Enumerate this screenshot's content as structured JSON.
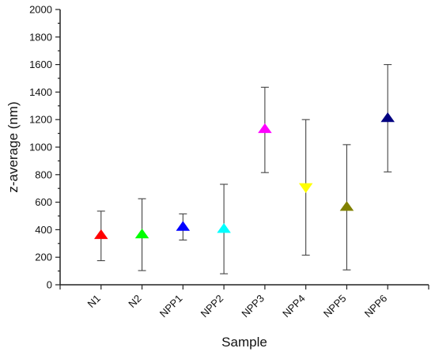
{
  "chart_data": {
    "type": "scatter",
    "xlabel": "Sample",
    "ylabel": "z-average (nm)",
    "ylim": [
      0,
      2000
    ],
    "yticks": [
      0,
      200,
      400,
      600,
      800,
      1000,
      1200,
      1400,
      1600,
      1800,
      2000
    ],
    "categories": [
      "N1",
      "N2",
      "NPP1",
      "NPP2",
      "NPP3",
      "NPP4",
      "NPP5",
      "NPP6"
    ],
    "points": [
      {
        "label": "N1",
        "value": 360,
        "err_low": 175,
        "err_high": 535,
        "color": "#ff0000",
        "marker": "triangle-up"
      },
      {
        "label": "N2",
        "value": 365,
        "err_low": 103,
        "err_high": 625,
        "color": "#00ff00",
        "marker": "triangle-up"
      },
      {
        "label": "NPP1",
        "value": 420,
        "err_low": 325,
        "err_high": 515,
        "color": "#0000ff",
        "marker": "triangle-up"
      },
      {
        "label": "NPP2",
        "value": 405,
        "err_low": 80,
        "err_high": 730,
        "color": "#00ffff",
        "marker": "triangle-up"
      },
      {
        "label": "NPP3",
        "value": 1130,
        "err_low": 815,
        "err_high": 1435,
        "color": "#ff00ff",
        "marker": "triangle-up"
      },
      {
        "label": "NPP4",
        "value": 710,
        "err_low": 215,
        "err_high": 1200,
        "color": "#ffff00",
        "marker": "triangle-down"
      },
      {
        "label": "NPP5",
        "value": 565,
        "err_low": 108,
        "err_high": 1018,
        "color": "#808000",
        "marker": "triangle-up"
      },
      {
        "label": "NPP6",
        "value": 1210,
        "err_low": 820,
        "err_high": 1600,
        "color": "#000080",
        "marker": "triangle-up"
      }
    ]
  }
}
